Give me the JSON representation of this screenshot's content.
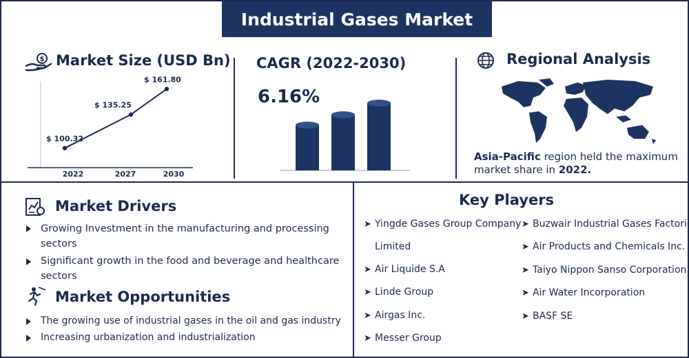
{
  "title": "Industrial Gases Market",
  "market_size": {
    "heading": "Market Size (USD Bn)",
    "chart_data": {
      "type": "line",
      "categories": [
        "2022",
        "2027",
        "2030"
      ],
      "values": [
        100.32,
        135.25,
        161.8
      ],
      "data_labels": [
        "$ 100.32",
        "$ 135.25",
        "$ 161.80"
      ],
      "title": "",
      "xlabel": "",
      "ylabel": "",
      "ylim": [
        80,
        170
      ]
    }
  },
  "cagr": {
    "heading": "CAGR (2022-2030)",
    "value": "6.16%"
  },
  "regional": {
    "heading": "Regional Analysis",
    "highlight": "Asia-Pacific",
    "text": " region held the maximum market share in ",
    "year": "2022."
  },
  "drivers": {
    "heading": "Market Drivers",
    "items": [
      "Growing Investment in the manufacturing and processing sectors",
      "Significant growth in the food and beverage and healthcare sectors"
    ]
  },
  "opportunities": {
    "heading": "Market Opportunities",
    "items": [
      "The growing use of industrial gases in the oil and gas industry",
      "Increasing urbanization and industrialization"
    ]
  },
  "key_players": {
    "heading": "Key Players",
    "left": [
      "Yingde Gases Group Company",
      "Limited",
      "Air Liquide S.A",
      "Linde Group",
      "Airgas Inc.",
      "Messer Group"
    ],
    "right": [
      "Buzwair Industrial Gases Factories",
      "Air Products and Chemicals Inc.",
      "Taiyo Nippon Sanso Corporation",
      "Air Water Incorporation",
      "BASF SE"
    ]
  },
  "colors": {
    "navy": "#1c3461",
    "text": "#1b2a4e"
  }
}
